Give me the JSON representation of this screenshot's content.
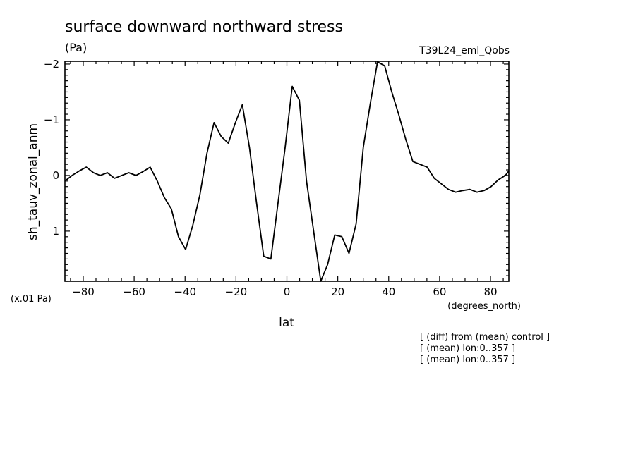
{
  "chart_data": {
    "type": "line",
    "title": "surface downward northward stress",
    "units": "(Pa)",
    "run_label": "T39L24_eml_Qobs",
    "ylabel": "sh_tauv_zonal_anm",
    "xlabel": "lat",
    "x_units": "(degrees_north)",
    "y_scale_note": "(x.01 Pa)",
    "annotations": [
      "[ (diff) from (mean) control ]",
      "[ (mean) lon:0..357 ]",
      "[ (mean) lon:0..357 ]"
    ],
    "xlim": [
      -87.2,
      87.2
    ],
    "ylim": [
      1.9,
      -2.05
    ],
    "y_inverted": true,
    "x_ticks": [
      -80,
      -60,
      -40,
      -20,
      0,
      20,
      40,
      60,
      80
    ],
    "x_tick_labels": [
      "−80",
      "−60",
      "−40",
      "−20",
      "0",
      "20",
      "40",
      "60",
      "80"
    ],
    "y_ticks": [
      -2,
      -1,
      0,
      1
    ],
    "y_tick_labels": [
      "−2",
      "−1",
      "0",
      "1"
    ],
    "x": [
      -87.2,
      -84.4,
      -81.6,
      -78.8,
      -76.0,
      -73.3,
      -70.5,
      -67.7,
      -64.9,
      -62.1,
      -59.3,
      -56.5,
      -53.7,
      -50.9,
      -48.1,
      -45.4,
      -42.6,
      -39.8,
      -37.0,
      -34.2,
      -31.4,
      -28.6,
      -25.8,
      -23.0,
      -20.2,
      -17.5,
      -14.7,
      -11.9,
      -9.1,
      -6.3,
      -3.5,
      -0.7,
      2.1,
      4.9,
      7.7,
      10.5,
      13.3,
      16.0,
      18.8,
      21.6,
      24.4,
      27.2,
      30.0,
      32.8,
      35.6,
      38.4,
      41.2,
      43.9,
      46.7,
      49.5,
      52.3,
      55.1,
      57.9,
      60.7,
      63.5,
      66.3,
      69.1,
      71.9,
      74.7,
      77.5,
      80.2,
      83.0,
      85.8,
      87.2
    ],
    "series": [
      {
        "values": [
          0.1,
          0.0,
          -0.08,
          -0.15,
          -0.05,
          0.0,
          -0.05,
          0.05,
          0.0,
          -0.05,
          0.0,
          -0.07,
          -0.15,
          0.1,
          0.4,
          0.6,
          1.1,
          1.33,
          0.9,
          0.35,
          -0.4,
          -0.95,
          -0.7,
          -0.58,
          -0.95,
          -1.27,
          -0.5,
          0.5,
          1.45,
          1.5,
          0.5,
          -0.5,
          -1.6,
          -1.35,
          0.1,
          1.0,
          1.9,
          1.6,
          1.07,
          1.1,
          1.4,
          0.87,
          -0.5,
          -1.3,
          -2.04,
          -1.97,
          -1.5,
          -1.1,
          -0.65,
          -0.25,
          -0.2,
          -0.15,
          0.05,
          0.15,
          0.25,
          0.3,
          0.27,
          0.25,
          0.3,
          0.27,
          0.2,
          0.08,
          0.0,
          -0.08
        ]
      }
    ],
    "grid": false,
    "legend": "none"
  }
}
